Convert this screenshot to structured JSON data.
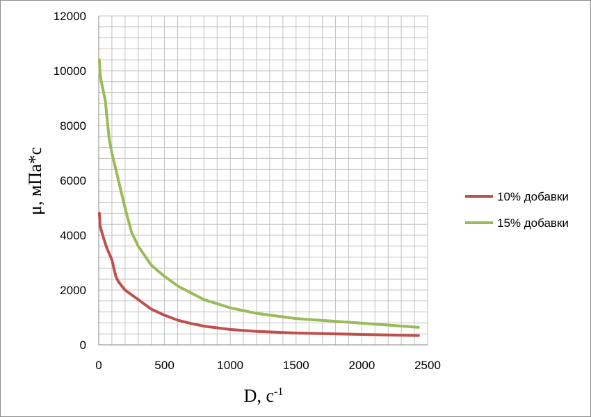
{
  "chart_data": {
    "type": "line",
    "title": "",
    "xlabel": "D, с",
    "xlabel_superscript": "-1",
    "ylabel": "μ, мПа*с",
    "xlim": [
      0,
      2500
    ],
    "ylim": [
      0,
      12000
    ],
    "x_ticks": [
      "0",
      "500",
      "1000",
      "1500",
      "2000",
      "2500"
    ],
    "y_ticks": [
      "0",
      "2000",
      "4000",
      "6000",
      "8000",
      "10000",
      "12000"
    ],
    "grid": true,
    "legend_position": "right",
    "series": [
      {
        "name": "10% добавки",
        "color": "#c0504d",
        "x": [
          5,
          10,
          30,
          60,
          100,
          130,
          150,
          200,
          300,
          400,
          500,
          600,
          700,
          800,
          1000,
          1200,
          1500,
          2000,
          2430
        ],
        "y": [
          4800,
          4350,
          4000,
          3550,
          3100,
          2500,
          2300,
          2000,
          1650,
          1300,
          1080,
          900,
          780,
          680,
          560,
          490,
          430,
          380,
          340
        ]
      },
      {
        "name": "15% добавки",
        "color": "#9bbb59",
        "x": [
          5,
          10,
          20,
          50,
          80,
          100,
          150,
          200,
          250,
          300,
          400,
          500,
          600,
          800,
          1000,
          1200,
          1500,
          2000,
          2430
        ],
        "y": [
          10400,
          9900,
          9600,
          8900,
          7500,
          7000,
          6000,
          5000,
          4100,
          3600,
          2900,
          2500,
          2150,
          1650,
          1350,
          1150,
          960,
          790,
          640
        ]
      }
    ]
  }
}
